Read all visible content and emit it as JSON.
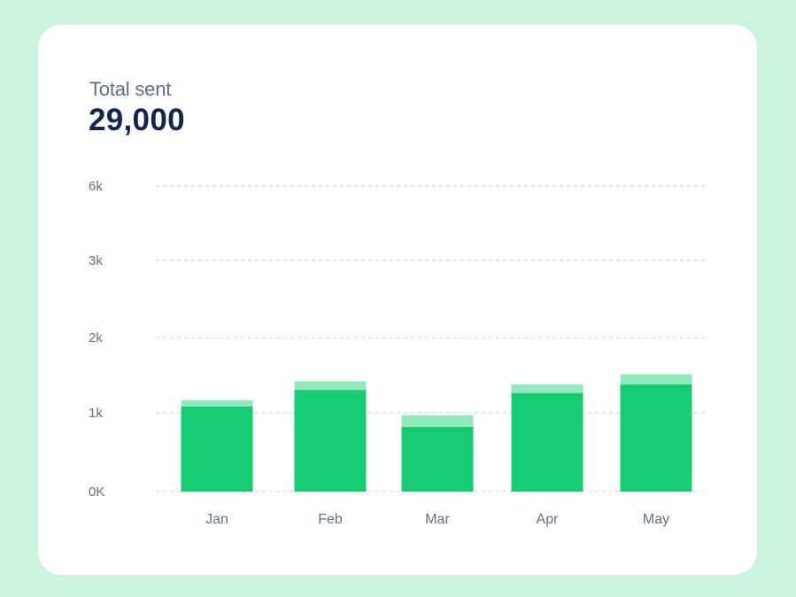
{
  "summary": {
    "label": "Total sent",
    "value": "29,000"
  },
  "colors": {
    "background": "#cdf3e1",
    "card": "#ffffff",
    "bar_primary": "#16cc73",
    "bar_secondary": "#93e8bd",
    "grid": "#c9d3dc",
    "text_muted": "#5f6f8c",
    "text_strong": "#14254d"
  },
  "chart_data": {
    "type": "bar",
    "stacked": true,
    "categories": [
      "Jan",
      "Feb",
      "Mar",
      "Apr",
      "May"
    ],
    "series": [
      {
        "name": "primary",
        "values": [
          1080,
          1290,
          820,
          1250,
          1360
        ]
      },
      {
        "name": "secondary",
        "values": [
          80,
          110,
          150,
          110,
          130
        ]
      }
    ],
    "y_ticks": [
      {
        "value": 0,
        "label": "0K"
      },
      {
        "value": 1000,
        "label": "1k"
      },
      {
        "value": 2000,
        "label": "2k"
      },
      {
        "value": 3000,
        "label": "3k"
      },
      {
        "value": 6000,
        "label": "6k"
      }
    ],
    "title": "Total sent",
    "xlabel": "",
    "ylabel": "",
    "grid": true
  }
}
